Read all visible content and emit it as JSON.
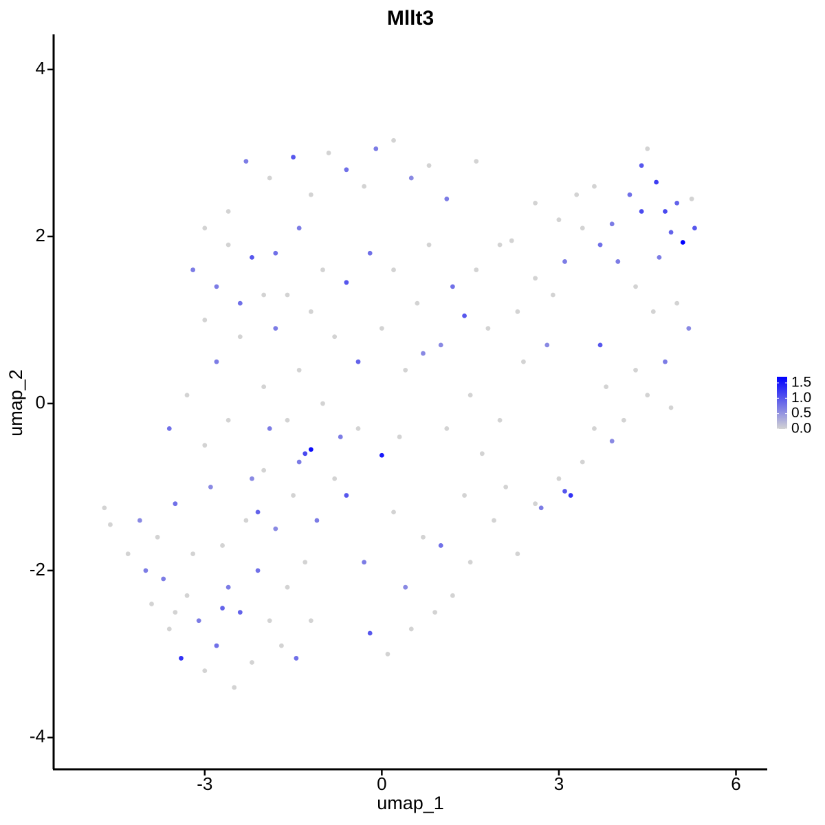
{
  "chart_data": {
    "type": "scatter",
    "title": "Mllt3",
    "x_label": "umap_1",
    "y_label": "umap_2",
    "xlim": [
      -5.56,
      6.53
    ],
    "ylim": [
      -4.38,
      4.42
    ],
    "xticks": [
      -3,
      0,
      3,
      6
    ],
    "yticks": [
      -4,
      -2,
      0,
      2,
      4
    ],
    "colorscale": [
      "#d3d3d3",
      "#0000ff"
    ],
    "clim": [
      0,
      1.7
    ],
    "cticks": [
      {
        "value": 0,
        "label": "0.0"
      },
      {
        "value": 0.5,
        "label": "0.5"
      },
      {
        "value": 1,
        "label": "1.0"
      },
      {
        "value": 1.5,
        "label": "1.5"
      }
    ],
    "x": [
      -4.7,
      -4.6,
      -4.3,
      -4.1,
      -4.0,
      -3.9,
      -3.8,
      -3.7,
      -3.6,
      -3.5,
      -3.4,
      -3.3,
      -3.2,
      -3.1,
      -3.0,
      -2.9,
      -2.8,
      -2.7,
      -2.6,
      -2.5,
      -2.4,
      -2.3,
      -2.2,
      -2.1,
      -2.0,
      -1.9,
      -1.8,
      -1.7,
      -1.6,
      -1.5,
      -1.45,
      -1.3,
      -1.2,
      -1.1,
      -3.6,
      -3.3,
      -3.0,
      -2.8,
      -2.6,
      -2.4,
      -2.2,
      -2.0,
      -1.8,
      -1.6,
      -1.4,
      -1.2,
      -1.3,
      -1.0,
      -0.8,
      -0.6,
      -0.4,
      -0.3,
      -0.2,
      0.0,
      0.1,
      0.2,
      0.4,
      0.5,
      0.7,
      0.9,
      1.0,
      1.2,
      1.4,
      1.5,
      1.7,
      1.9,
      2.1,
      2.3,
      2.6,
      2.7,
      3.0,
      3.1,
      3.2,
      3.4,
      3.6,
      3.8,
      3.9,
      4.1,
      4.3,
      4.5,
      4.8,
      4.9,
      5.2,
      5.0,
      4.6,
      4.3,
      4.0,
      3.7,
      3.4,
      3.1,
      2.9,
      2.6,
      2.3,
      2.0,
      1.8,
      1.6,
      1.4,
      1.2,
      1.0,
      0.8,
      0.6,
      0.4,
      0.2,
      0.0,
      -0.2,
      -0.4,
      -0.6,
      -0.8,
      -1.0,
      -1.2,
      -1.4,
      -1.6,
      -1.8,
      -2.0,
      -2.2,
      -2.4,
      -2.6,
      -2.8,
      -3.0,
      -3.2,
      -3.0,
      -2.6,
      -2.3,
      -1.9,
      -1.5,
      -1.2,
      -0.9,
      -0.6,
      -0.3,
      -0.1,
      0.2,
      0.5,
      0.8,
      1.1,
      1.6,
      2.2,
      2.6,
      3.0,
      3.3,
      3.6,
      3.9,
      4.2,
      4.4,
      4.5,
      4.65,
      4.8,
      4.9,
      5.1,
      5.0,
      5.3,
      5.25,
      4.7,
      4.4,
      3.7,
      2.8,
      2.4,
      2.0,
      1.5,
      1.1,
      0.7,
      0.3,
      -0.7,
      -1.9,
      -2.1,
      -2.7,
      -3.5,
      -1.4
    ],
    "y": [
      -1.25,
      -1.45,
      -1.8,
      -1.4,
      -2.0,
      -2.4,
      -1.6,
      -2.1,
      -2.7,
      -1.2,
      -3.05,
      -2.3,
      -1.8,
      -2.6,
      -3.2,
      -1.0,
      -2.9,
      -1.7,
      -2.2,
      -3.4,
      -2.5,
      -1.4,
      -3.1,
      -2.0,
      -0.8,
      -2.6,
      -1.5,
      -2.9,
      -2.2,
      -1.1,
      -3.05,
      -1.9,
      -2.6,
      -1.4,
      -0.3,
      0.1,
      -0.5,
      0.5,
      -0.2,
      0.8,
      -0.9,
      0.2,
      0.9,
      -0.2,
      0.4,
      -0.55,
      -0.6,
      0.0,
      -0.9,
      -1.1,
      -0.3,
      -1.9,
      -2.75,
      -0.62,
      -3.0,
      -1.3,
      -2.2,
      -2.7,
      -1.6,
      -2.5,
      -1.7,
      -2.3,
      -1.1,
      -1.9,
      -0.6,
      -1.4,
      -1.0,
      -1.8,
      -1.2,
      -1.25,
      -0.9,
      -1.05,
      -1.1,
      -0.7,
      -0.3,
      0.2,
      -0.45,
      -0.2,
      0.4,
      0.1,
      0.5,
      -0.05,
      0.9,
      1.2,
      1.1,
      1.4,
      1.7,
      1.9,
      2.1,
      1.7,
      1.3,
      1.5,
      1.1,
      1.9,
      0.9,
      1.6,
      1.05,
      1.4,
      0.7,
      1.9,
      1.2,
      0.4,
      1.6,
      0.9,
      1.8,
      0.5,
      1.45,
      0.8,
      1.6,
      1.1,
      2.1,
      1.3,
      1.8,
      1.3,
      1.75,
      1.2,
      1.9,
      1.4,
      1.0,
      1.6,
      2.1,
      2.3,
      2.9,
      2.7,
      2.95,
      2.5,
      3.0,
      2.8,
      2.6,
      3.05,
      3.15,
      2.7,
      2.85,
      2.45,
      2.9,
      1.95,
      2.4,
      2.2,
      2.5,
      2.6,
      2.15,
      2.5,
      2.85,
      3.05,
      2.65,
      2.3,
      2.05,
      1.93,
      2.4,
      2.1,
      2.45,
      1.75,
      2.3,
      0.7,
      0.7,
      0.5,
      -0.2,
      0.1,
      -0.3,
      0.6,
      -0.4,
      -0.4,
      -0.3,
      -1.3,
      -2.45,
      -2.5,
      -0.7
    ],
    "values": [
      0,
      0,
      0,
      0.6,
      0.7,
      0,
      0,
      0.7,
      0,
      0.8,
      1.3,
      0,
      0,
      0.7,
      0,
      0.6,
      0.8,
      0,
      0.7,
      0,
      0.9,
      0,
      0,
      0.8,
      0,
      0,
      0.6,
      0,
      0,
      0,
      0.8,
      0,
      0,
      0.7,
      0.8,
      0,
      0,
      0.7,
      0,
      0,
      0.6,
      0,
      0.7,
      0,
      0,
      1.6,
      1.1,
      0,
      0,
      1.0,
      0,
      0.7,
      1.0,
      1.5,
      0,
      0,
      0.6,
      0,
      0,
      0,
      0.8,
      0,
      0,
      0,
      0,
      0,
      0,
      0,
      0,
      0.7,
      0,
      1.0,
      1.3,
      0,
      0,
      0,
      0.6,
      0,
      0,
      0,
      0.7,
      0,
      0.6,
      0,
      0,
      0,
      0.7,
      0.8,
      0,
      0.7,
      0,
      0,
      0,
      0,
      0,
      0,
      1.0,
      0.8,
      0.6,
      0,
      0,
      0,
      0,
      0,
      0.8,
      0.9,
      1.0,
      0,
      0,
      0,
      0.7,
      0,
      0.8,
      0,
      1.0,
      0.8,
      0,
      0.7,
      0,
      0.7,
      0,
      0,
      0.7,
      0,
      1.0,
      0,
      0,
      0.8,
      0,
      0.7,
      0,
      0.6,
      0,
      0.7,
      0,
      0,
      0,
      0,
      0,
      0,
      0.7,
      0.8,
      1.0,
      0,
      1.2,
      1.1,
      0.9,
      1.7,
      0.9,
      1.0,
      0,
      0.7,
      1.1,
      1.0,
      0.6,
      0,
      0,
      0,
      0,
      0.6,
      0,
      0.7,
      0.7,
      0.9,
      0.9,
      0,
      0.7
    ]
  }
}
